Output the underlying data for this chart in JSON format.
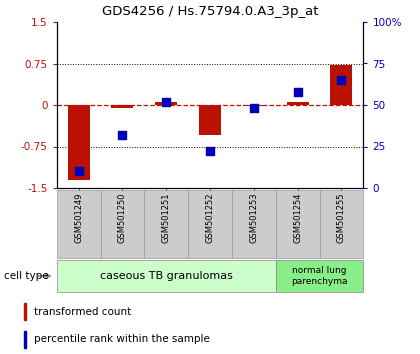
{
  "title": "GDS4256 / Hs.75794.0.A3_3p_at",
  "samples": [
    "GSM501249",
    "GSM501250",
    "GSM501251",
    "GSM501252",
    "GSM501253",
    "GSM501254",
    "GSM501255"
  ],
  "transformed_count": [
    -1.35,
    -0.05,
    0.05,
    -0.55,
    -0.02,
    0.05,
    0.72
  ],
  "percentile_rank": [
    10,
    32,
    52,
    22,
    48,
    58,
    65
  ],
  "ylim_left": [
    -1.5,
    1.5
  ],
  "ylim_right": [
    0,
    100
  ],
  "yticks_left": [
    -1.5,
    -0.75,
    0,
    0.75,
    1.5
  ],
  "ytick_labels_left": [
    "-1.5",
    "-0.75",
    "0",
    "0.75",
    "1.5"
  ],
  "yticks_right": [
    0,
    25,
    50,
    75,
    100
  ],
  "ytick_labels_right": [
    "0",
    "25",
    "50",
    "75",
    "100%"
  ],
  "bar_color": "#bb1100",
  "dot_color": "#0000bb",
  "group1_label": "caseous TB granulomas",
  "group1_count": 5,
  "group2_label": "normal lung\nparenchyma",
  "group2_count": 2,
  "group1_color": "#ccffcc",
  "group2_color": "#88ee88",
  "cell_type_label": "cell type",
  "legend_bar_label": "transformed count",
  "legend_dot_label": "percentile rank within the sample",
  "bar_width": 0.5,
  "dot_size": 28,
  "tick_box_color": "#cccccc",
  "tick_box_edge": "#999999"
}
